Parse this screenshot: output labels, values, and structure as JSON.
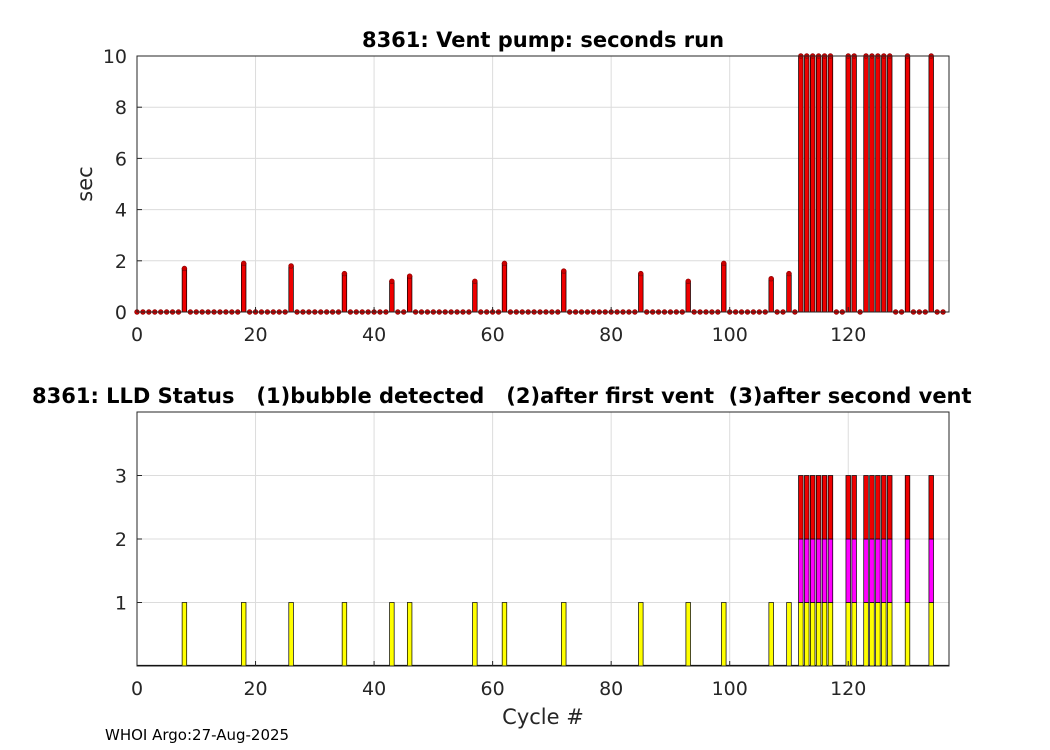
{
  "footer": "WHOI Argo:27-Aug-2025",
  "colors": {
    "pump": "#ee0000",
    "lld_1": "#ffff00",
    "lld_2": "#ff00ff",
    "lld_3": "#ee0000",
    "marker": "#cc0000",
    "grid": "#dcdcdc",
    "axes": "#262626"
  },
  "chart_data": [
    {
      "type": "bar",
      "title": "8361: Vent pump: seconds run",
      "xlabel": "",
      "ylabel": "sec",
      "xlim": [
        0,
        137
      ],
      "ylim": [
        0,
        10
      ],
      "xticks": [
        0,
        20,
        40,
        60,
        80,
        100,
        120
      ],
      "yticks": [
        0,
        2,
        4,
        6,
        8,
        10
      ],
      "grid": true,
      "markers": "red dots at zero for cycles without pump run",
      "x": [
        8,
        18,
        26,
        35,
        43,
        46,
        57,
        62,
        72,
        85,
        93,
        99,
        107,
        110,
        112,
        113,
        114,
        115,
        116,
        117,
        120,
        121,
        123,
        124,
        125,
        126,
        127,
        130,
        134
      ],
      "values": [
        1.7,
        1.9,
        1.8,
        1.5,
        1.2,
        1.4,
        1.2,
        1.9,
        1.6,
        1.5,
        1.2,
        1.9,
        1.3,
        1.5,
        10,
        10,
        10,
        10,
        10,
        10,
        10,
        10,
        10,
        10,
        10,
        10,
        10,
        10,
        10
      ]
    },
    {
      "type": "bar",
      "title": "8361: LLD Status   (1)bubble detected   (2)after first vent  (3)after second vent",
      "xlabel": "Cycle #",
      "ylabel": "",
      "xlim": [
        0,
        137
      ],
      "ylim": [
        0,
        4
      ],
      "xticks": [
        0,
        20,
        40,
        60,
        80,
        100,
        120
      ],
      "yticks": [
        1,
        2,
        3
      ],
      "grid": true,
      "stacked": true,
      "x": [
        8,
        18,
        26,
        35,
        43,
        46,
        57,
        62,
        72,
        85,
        93,
        99,
        107,
        110,
        112,
        113,
        114,
        115,
        116,
        117,
        120,
        121,
        123,
        124,
        125,
        126,
        127,
        130,
        134
      ],
      "values": [
        1,
        1,
        1,
        1,
        1,
        1,
        1,
        1,
        1,
        1,
        1,
        1,
        1,
        1,
        3,
        3,
        3,
        3,
        3,
        3,
        3,
        3,
        3,
        3,
        3,
        3,
        3,
        3,
        3
      ]
    }
  ]
}
